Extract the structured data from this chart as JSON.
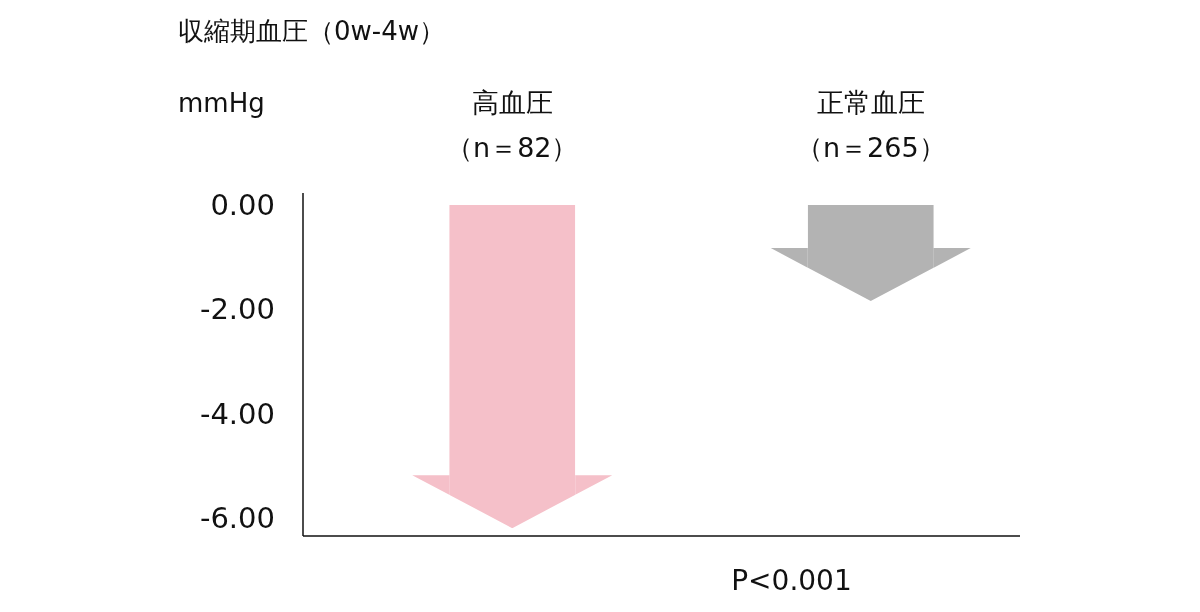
{
  "chart_data": {
    "type": "bar",
    "title": "収縮期血圧（0w-4w）",
    "ylabel": "mmHg",
    "categories": [
      "高血圧（n＝82）",
      "正常血圧（n＝265）"
    ],
    "values": [
      -6.19,
      -1.84
    ],
    "colors": [
      "#f5c0c9",
      "#b3b3b3"
    ],
    "ylim": [
      -6.34,
      0.23
    ],
    "yticks": [
      {
        "value": 0,
        "label": "0.00"
      },
      {
        "value": -2,
        "label": "-2.00"
      },
      {
        "value": -4,
        "label": "-4.00"
      },
      {
        "value": -6,
        "label": "-6.00"
      }
    ],
    "annotations": [
      "P<0.001"
    ],
    "grid": false
  }
}
